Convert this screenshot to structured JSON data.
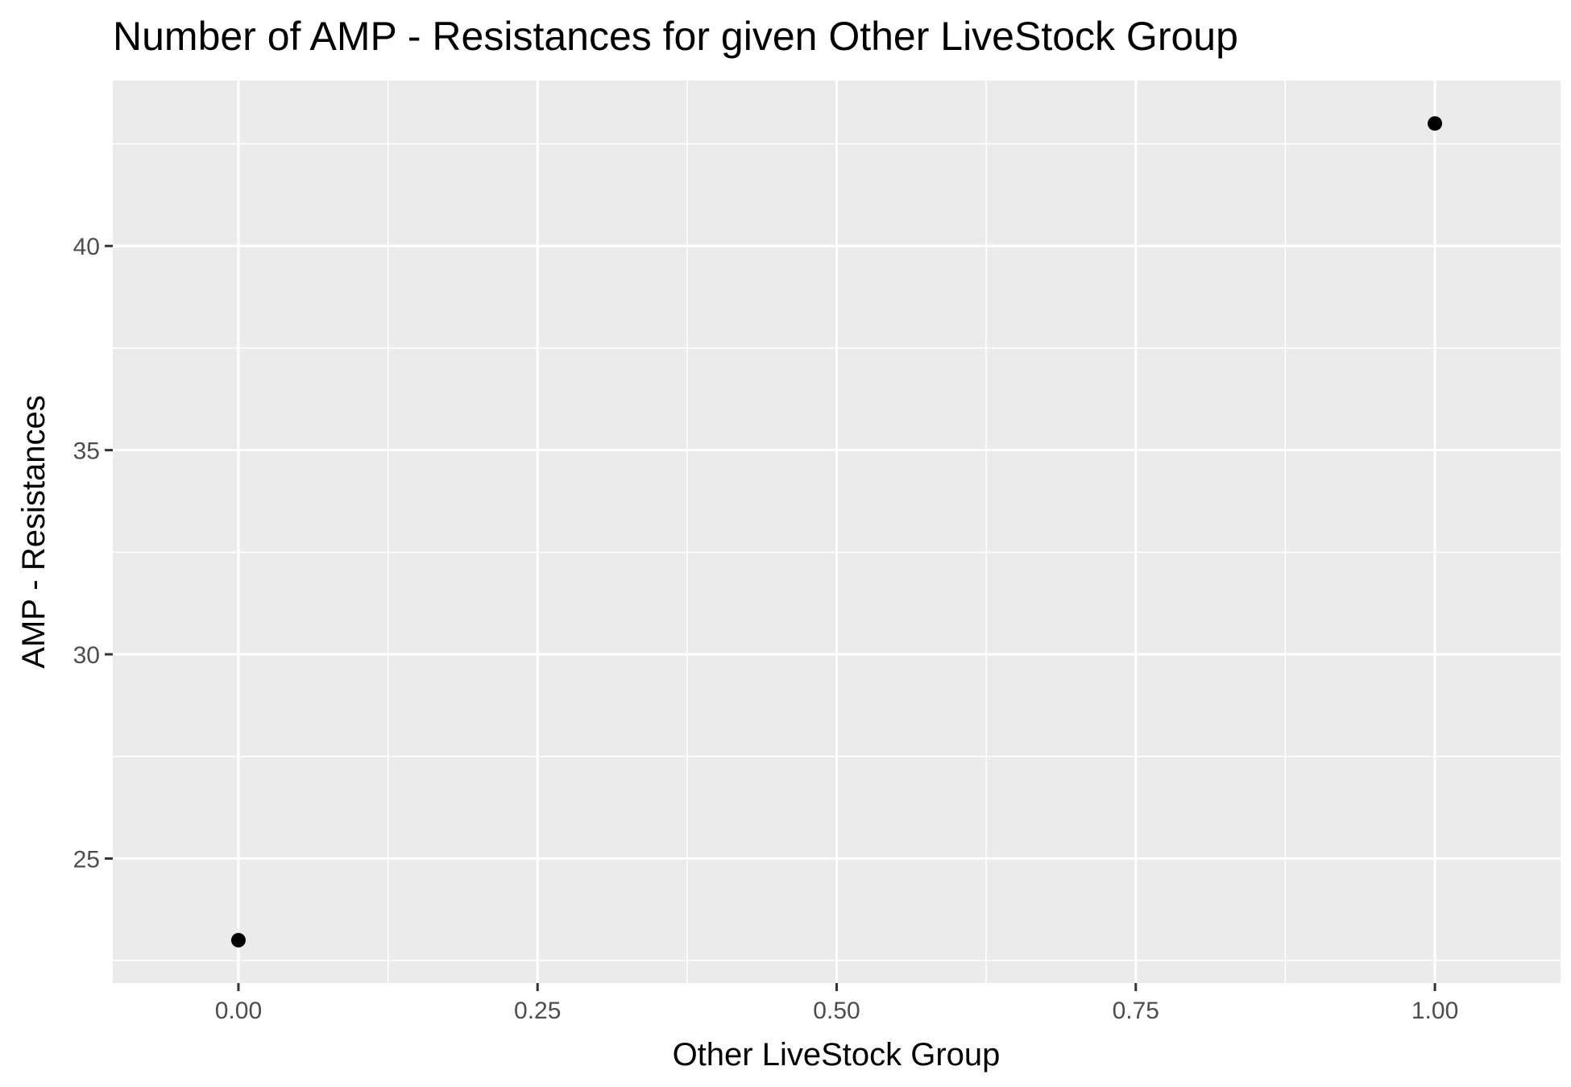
{
  "chart_data": {
    "type": "scatter",
    "title": "Number of AMP - Resistances for given Other LiveStock Group",
    "xlabel": "Other LiveStock Group",
    "ylabel": "AMP - Resistances",
    "xlim": [
      -0.105,
      1.105
    ],
    "ylim": [
      21.95,
      44.05
    ],
    "x_ticks": [
      0.0,
      0.25,
      0.5,
      0.75,
      1.0
    ],
    "x_tick_labels": [
      "0.00",
      "0.25",
      "0.50",
      "0.75",
      "1.00"
    ],
    "y_ticks": [
      25,
      30,
      35,
      40
    ],
    "y_tick_labels": [
      "25",
      "30",
      "35",
      "40"
    ],
    "grid": true,
    "legend": "none",
    "colors": {
      "panel": "#ebebeb",
      "grid": "#ffffff",
      "point": "#000000"
    },
    "series": [
      {
        "x": [
          0,
          1
        ],
        "y": [
          23,
          43
        ]
      }
    ]
  }
}
